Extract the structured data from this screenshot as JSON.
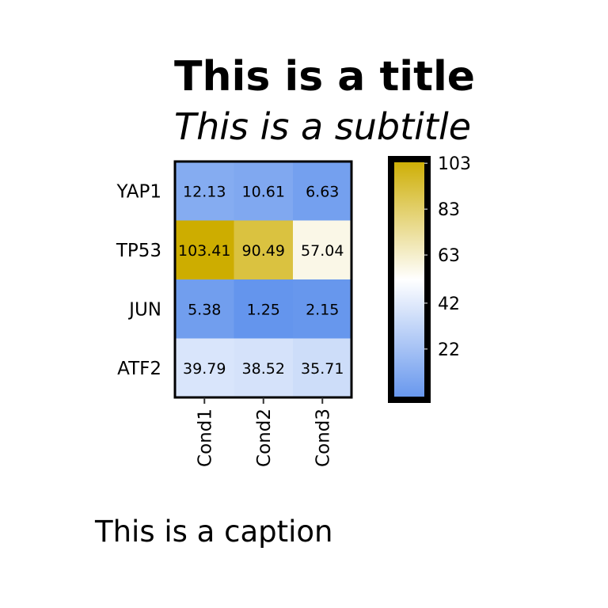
{
  "title": "This is a title",
  "subtitle": "This is a subtitle",
  "caption": "This is a caption",
  "chart_data": {
    "type": "heatmap",
    "rows": [
      "YAP1",
      "TP53",
      "JUN",
      "ATF2"
    ],
    "columns": [
      "Cond1",
      "Cond2",
      "Cond3"
    ],
    "values": [
      [
        12.13,
        10.61,
        6.63
      ],
      [
        103.41,
        90.49,
        57.04
      ],
      [
        5.38,
        1.25,
        2.15
      ],
      [
        39.79,
        38.52,
        35.71
      ]
    ],
    "cell_labels": [
      [
        "12.13",
        "10.61",
        "6.63"
      ],
      [
        "103.41",
        "90.49",
        "57.04"
      ],
      [
        "5.38",
        "1.25",
        "2.15"
      ],
      [
        "39.79",
        "38.52",
        "35.71"
      ]
    ],
    "colorbar": {
      "ticks": [
        22,
        42,
        63,
        83,
        103
      ],
      "tick_labels": [
        "22",
        "42",
        "63",
        "83",
        "103"
      ],
      "range": [
        1.25,
        103.41
      ],
      "colors": {
        "low": "#6495ED",
        "mid": "#FFFFFF",
        "high": "#CDAD00"
      }
    },
    "legend_position": "right"
  }
}
